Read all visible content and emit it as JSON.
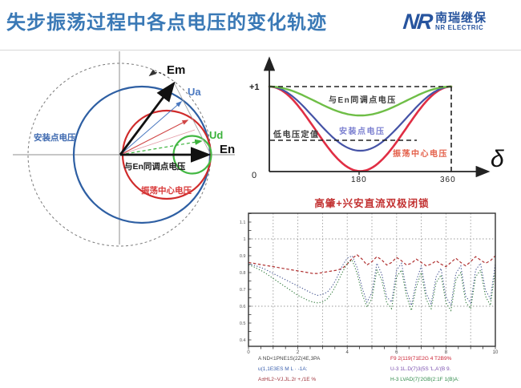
{
  "slide": {
    "title": "失步振荡过程中各点电压的变化轨迹"
  },
  "logo": {
    "mark": "NR",
    "name_cn": "南瑞继保",
    "name_en": "NR ELECTRIC",
    "color": "#27549e"
  },
  "colors": {
    "title": "#3a79b6",
    "divider": "#d8d8d8"
  },
  "phasor": {
    "labels": {
      "em": "Em",
      "ua": "Ua",
      "ud": "Ud",
      "en": "En",
      "install_point": "安装点电压",
      "sync_point": "与En同调点电压",
      "osc_center": "振荡中心电压"
    },
    "colors": {
      "install_circle": "#2e5fa3",
      "center_circle": "#cf2b2b",
      "ud_circle": "#43b843",
      "outer_dashed": "#7a7a7a",
      "axis": "#8f8f8f",
      "em_en": "#111111",
      "ua_vector": "#4a78c0",
      "center_vector": "#d04545",
      "ud_vector": "#3bb23b",
      "install_label": "#3f6ab0",
      "sync_label": "#1d1d1d",
      "center_label": "#d93a3a"
    }
  },
  "chart_data": [
    {
      "type": "line",
      "title": "",
      "xlabel": "δ",
      "y_top_label": "+1",
      "y_origin_label": "0",
      "xlim": [
        0,
        400
      ],
      "ylim": [
        0,
        1.1
      ],
      "x_ticks": [
        {
          "label": "180",
          "deg": 180
        },
        {
          "label": "360",
          "deg": 360
        }
      ],
      "grid": "off",
      "legend_position": "inline",
      "series": [
        {
          "name": "与En同调点电压",
          "color": "#6fbe47",
          "width": 2.4,
          "v_min": 0.66,
          "v_max": 1.0,
          "label_color": "#3c3c3c"
        },
        {
          "name": "安装点电压",
          "color": "#4553a6",
          "width": 2.2,
          "v_min": 0.245,
          "v_max": 1.0,
          "label_color": "#7b7fd0"
        },
        {
          "name": "振荡中心电压",
          "color": "#e02e44",
          "width": 2.6,
          "v_min": 0.005,
          "v_max": 1.0,
          "label_color": "#e4604a"
        }
      ],
      "threshold": {
        "label": "低电压定值",
        "value": 0.37,
        "label_color": "#3b3b3b"
      }
    },
    {
      "type": "line",
      "title": "高肇+兴安直流双极闭锁",
      "title_color": "#c23030",
      "xlim": [
        0,
        10
      ],
      "ylim": [
        0.37,
        1.17
      ],
      "x_step": 0.2,
      "x_gridlines": [
        1,
        2,
        3,
        4,
        5,
        6,
        7,
        8,
        9
      ],
      "y_gridlines": [
        1.0,
        0.6
      ],
      "x_tick_labels": [
        {
          "t": 0,
          "label": "0"
        },
        {
          "t": 2,
          "label": "2"
        },
        {
          "t": 4,
          "label": "4"
        },
        {
          "t": 6,
          "label": "6"
        },
        {
          "t": 8,
          "label": "8"
        },
        {
          "t": 10,
          "label": "10"
        }
      ],
      "y_tick_labels": [
        {
          "v": 1.1,
          "label": "1.1"
        },
        {
          "v": 1.0,
          "label": "1"
        },
        {
          "v": 0.9,
          "label": "0.9"
        },
        {
          "v": 0.8,
          "label": "0.8"
        },
        {
          "v": 0.7,
          "label": "0.7"
        },
        {
          "v": 0.6,
          "label": "0.6"
        },
        {
          "v": 0.5,
          "label": "0.5"
        },
        {
          "v": 0.4,
          "label": "0.4"
        }
      ],
      "series": [
        {
          "name": "trace-red",
          "color": "#b03030",
          "dash": "3.5 2.5",
          "width": 1.2,
          "values": [
            0.86,
            0.855,
            0.85,
            0.845,
            0.84,
            0.835,
            0.83,
            0.825,
            0.82,
            0.815,
            0.81,
            0.805,
            0.8,
            0.795,
            0.795,
            0.8,
            0.805,
            0.81,
            0.815,
            0.825,
            0.85,
            0.885,
            0.905,
            0.88,
            0.845,
            0.865,
            0.895,
            0.875,
            0.845,
            0.86,
            0.89,
            0.87,
            0.845,
            0.855,
            0.88,
            0.86,
            0.84,
            0.85,
            0.87,
            0.85,
            0.835,
            0.86,
            0.885,
            0.86,
            0.84,
            0.865,
            0.895,
            0.875,
            0.855,
            0.87,
            0.9
          ]
        },
        {
          "name": "trace-blue",
          "color": "#41518f",
          "dash": "1.3 2.2",
          "width": 1.05,
          "values": [
            0.85,
            0.845,
            0.835,
            0.825,
            0.81,
            0.795,
            0.78,
            0.765,
            0.75,
            0.735,
            0.72,
            0.705,
            0.69,
            0.675,
            0.665,
            0.67,
            0.685,
            0.72,
            0.775,
            0.84,
            0.885,
            0.9,
            0.83,
            0.71,
            0.625,
            0.68,
            0.855,
            0.79,
            0.655,
            0.625,
            0.815,
            0.855,
            0.695,
            0.605,
            0.75,
            0.84,
            0.675,
            0.615,
            0.775,
            0.825,
            0.655,
            0.605,
            0.795,
            0.84,
            0.66,
            0.62,
            0.815,
            0.855,
            0.695,
            0.645,
            0.855
          ]
        },
        {
          "name": "trace-green",
          "color": "#2f7a3a",
          "dash": "1.3 2.2",
          "width": 1.05,
          "values": [
            0.845,
            0.835,
            0.82,
            0.805,
            0.785,
            0.765,
            0.745,
            0.725,
            0.705,
            0.685,
            0.665,
            0.65,
            0.635,
            0.625,
            0.62,
            0.625,
            0.645,
            0.685,
            0.74,
            0.8,
            0.855,
            0.875,
            0.795,
            0.675,
            0.595,
            0.645,
            0.815,
            0.755,
            0.62,
            0.585,
            0.775,
            0.815,
            0.66,
            0.575,
            0.715,
            0.8,
            0.64,
            0.585,
            0.74,
            0.785,
            0.62,
            0.575,
            0.755,
            0.8,
            0.625,
            0.585,
            0.775,
            0.815,
            0.66,
            0.605,
            0.815
          ]
        }
      ],
      "legend_left": [
        {
          "text": "A ND<1PNE1S(2Z(4E,3PA",
          "color": "#454545"
        },
        {
          "text": "u(1,1E3ES M L · -1A:",
          "color": "#3a5fae"
        },
        {
          "text": "A±HL2~VJ.JL.2r +,/1E %",
          "color": "#9e3038"
        }
      ],
      "legend_right": [
        {
          "text": "F9 2(119(71E2G 4 T2B9%",
          "color": "#cc2233"
        },
        {
          "text": "U-3 1L.D(7)3(5S 'L,A'(B 9.",
          "color": "#7a4fae"
        },
        {
          "text": "H-3 LVAD(7)'2GB(2:1F 1(B)A:",
          "color": "#2f8a4a"
        }
      ]
    }
  ]
}
